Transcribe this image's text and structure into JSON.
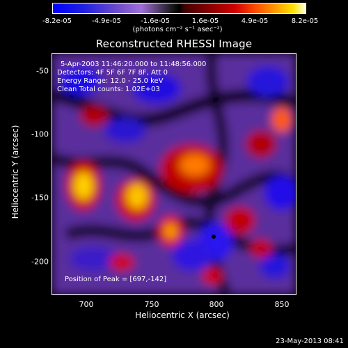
{
  "colorbar": {
    "ticks": [
      "-8.2e-05",
      "-4.9e-05",
      "-1.6e-05",
      "1.6e-05",
      "4.9e-05",
      "8.2e-05"
    ],
    "units": "(photons cm⁻² s⁻¹ asec⁻²)"
  },
  "title": "Reconstructed RHESSI Image",
  "annotations": {
    "time_range": "5-Apr-2003 11:46:20.000 to 11:48:56.000",
    "detectors": "Detectors: 4F 5F 6F 7F 8F, Att 0",
    "energy": "Energy Range: 12.0 - 25.0 keV",
    "clean": "Clean    Total counts: 1.02E+03",
    "peak": "Position of Peak = [697,-142]"
  },
  "axes": {
    "xlabel": "Heliocentric X (arcsec)",
    "ylabel": "Heliocentric Y (arcsec)",
    "xticks": [
      "700",
      "750",
      "800",
      "850"
    ],
    "yticks": [
      "-50",
      "-100",
      "-150",
      "-200"
    ]
  },
  "footer": {
    "date": "23-May-2013 08:41"
  }
}
